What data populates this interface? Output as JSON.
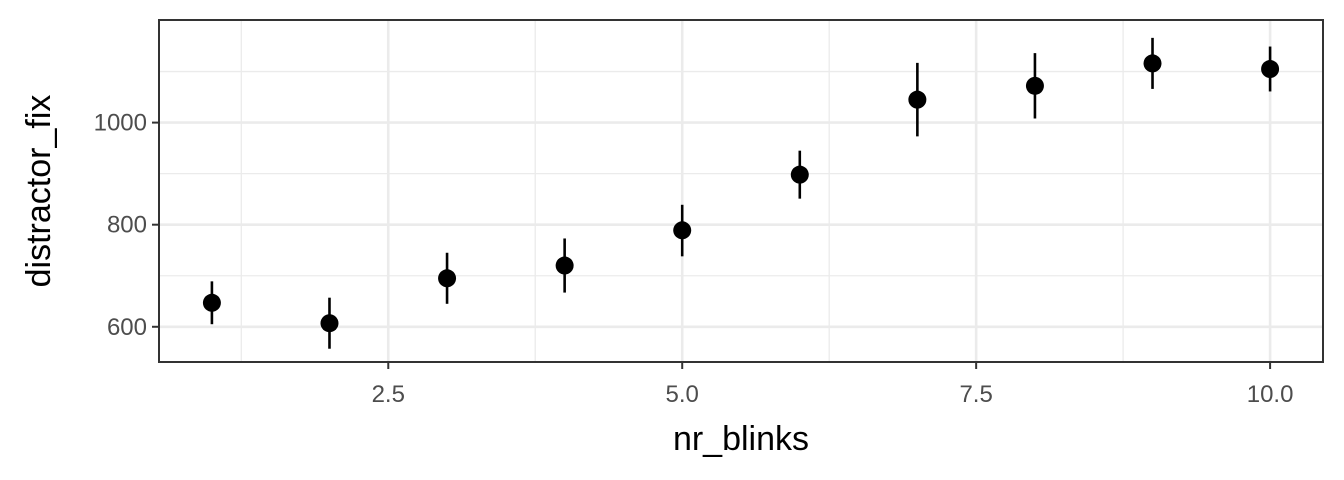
{
  "chart_data": {
    "type": "scatter",
    "xlabel": "nr_blinks",
    "ylabel": "distractor_fix",
    "xlim": [
      0.55,
      10.45
    ],
    "ylim": [
      531,
      1201
    ],
    "x_ticks": [
      2.5,
      5.0,
      7.5,
      10.0
    ],
    "x_tick_labels": [
      "2.5",
      "5.0",
      "7.5",
      "10.0"
    ],
    "y_ticks": [
      600,
      800,
      1000
    ],
    "y_tick_labels": [
      "600",
      "800",
      "1000"
    ],
    "grid": true,
    "points": [
      {
        "x": 1,
        "y": 647,
        "ymin": 605,
        "ymax": 689
      },
      {
        "x": 2,
        "y": 607,
        "ymin": 557,
        "ymax": 657
      },
      {
        "x": 3,
        "y": 695,
        "ymin": 645,
        "ymax": 745
      },
      {
        "x": 4,
        "y": 720,
        "ymin": 667,
        "ymax": 773
      },
      {
        "x": 5,
        "y": 789,
        "ymin": 738,
        "ymax": 839
      },
      {
        "x": 6,
        "y": 898,
        "ymin": 851,
        "ymax": 945
      },
      {
        "x": 7,
        "y": 1045,
        "ymin": 973,
        "ymax": 1117
      },
      {
        "x": 8,
        "y": 1072,
        "ymin": 1008,
        "ymax": 1136
      },
      {
        "x": 9,
        "y": 1116,
        "ymin": 1066,
        "ymax": 1166
      },
      {
        "x": 10,
        "y": 1105,
        "ymin": 1061,
        "ymax": 1149
      }
    ]
  }
}
